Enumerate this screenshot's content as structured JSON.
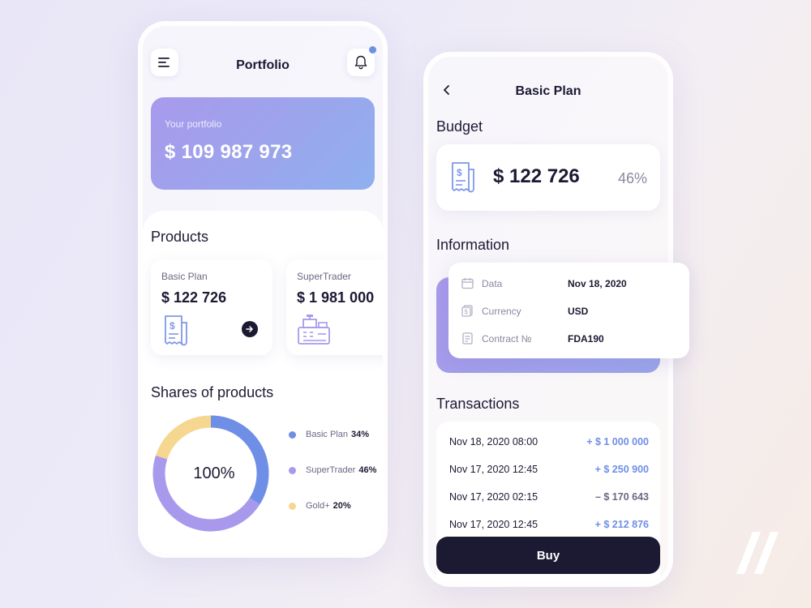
{
  "colors": {
    "accent": "#6f8fe6",
    "dark": "#1c1a33",
    "lavender": "#a999ec",
    "gold": "#f5d78f",
    "positive": "#6f8fe6",
    "negative": "#6b6883"
  },
  "left": {
    "title": "Portfolio",
    "icons": {
      "menu": "menu-icon",
      "bell": "bell-icon"
    },
    "portfolio": {
      "label": "Your portfolio",
      "value": "$ 109 987 973"
    },
    "products_heading": "Products",
    "products": [
      {
        "name": "Basic Plan",
        "value": "$ 122 726",
        "icon": "receipt-icon"
      },
      {
        "name": "SuperTrader",
        "value": "$ 1 981 000",
        "icon": "cash-register-icon"
      }
    ],
    "shares_heading": "Shares of products",
    "donut_center": "100%",
    "shares": [
      {
        "name": "Basic Plan",
        "pct_label": "34%",
        "value": 34,
        "color": "#6f8fe6"
      },
      {
        "name": "SuperTrader",
        "pct_label": "46%",
        "value": 46,
        "color": "#a999ec"
      },
      {
        "name": "Gold+",
        "pct_label": "20%",
        "value": 20,
        "color": "#f5d78f"
      }
    ]
  },
  "right": {
    "title": "Basic Plan",
    "budget_heading": "Budget",
    "budget": {
      "value": "$ 122 726",
      "pct": "46%"
    },
    "information_heading": "Information",
    "info": [
      {
        "key": "Data",
        "value": "Nov 18, 2020",
        "icon": "calendar-icon"
      },
      {
        "key": "Currency",
        "value": "USD",
        "icon": "currency-icon"
      },
      {
        "key": "Contract №",
        "value": "FDA190",
        "icon": "document-icon"
      }
    ],
    "transactions_heading": "Transactions",
    "transactions": [
      {
        "date": "Nov 18, 2020 08:00",
        "amount": "+ $ 1 000 000",
        "positive": true
      },
      {
        "date": "Nov 17, 2020 12:45",
        "amount": "+ $ 250 900",
        "positive": true
      },
      {
        "date": "Nov 17, 2020 02:15",
        "amount": "– $ 170 643",
        "positive": false
      },
      {
        "date": "Nov 17, 2020 12:45",
        "amount": "+ $ 212 876",
        "positive": true
      }
    ],
    "buy_label": "Buy"
  }
}
